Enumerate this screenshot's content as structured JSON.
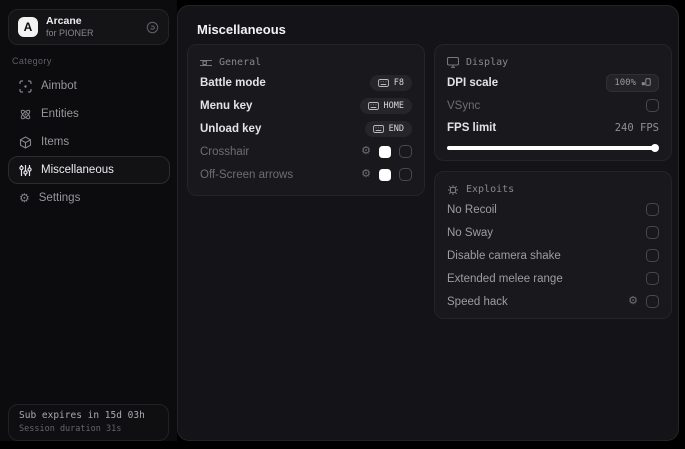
{
  "app": {
    "logo_letter": "A",
    "name": "Arcane",
    "subtitle": "for PIONER"
  },
  "sidebar": {
    "category_label": "Category",
    "items": [
      {
        "label": "Aimbot",
        "icon": "crosshair-scan-icon",
        "active": false
      },
      {
        "label": "Entities",
        "icon": "atom-icon",
        "active": false
      },
      {
        "label": "Items",
        "icon": "package-icon",
        "active": false
      },
      {
        "label": "Miscellaneous",
        "icon": "sliders-icon",
        "active": true
      },
      {
        "label": "Settings",
        "icon": "gear-icon",
        "active": false
      }
    ],
    "footer": {
      "sub_expiry": "Sub expires in 15d 03h",
      "session": "Session duration 31s"
    }
  },
  "main": {
    "title": "Miscellaneous",
    "general": {
      "header": "General",
      "rows": [
        {
          "label": "Battle mode",
          "keybind": "F8"
        },
        {
          "label": "Menu key",
          "keybind": "HOME"
        },
        {
          "label": "Unload key",
          "keybind": "END"
        },
        {
          "label": "Crosshair",
          "color": "#ffffff",
          "checked": false
        },
        {
          "label": "Off-Screen arrows",
          "color": "#ffffff",
          "checked": false
        }
      ]
    },
    "display": {
      "header": "Display",
      "rows": [
        {
          "label": "DPI scale",
          "value": "100%"
        },
        {
          "label": "VSync",
          "checked": false
        },
        {
          "label": "FPS limit",
          "value": "240 FPS",
          "slider_percent": 98
        }
      ]
    },
    "exploits": {
      "header": "Exploits",
      "rows": [
        {
          "label": "No Recoil",
          "checked": false
        },
        {
          "label": "No Sway",
          "checked": false
        },
        {
          "label": "Disable camera shake",
          "checked": false
        },
        {
          "label": "Extended melee range",
          "checked": false
        },
        {
          "label": "Speed hack",
          "checked": false,
          "has_settings": true
        }
      ]
    }
  },
  "colors": {
    "swatch": "#ffffff",
    "slider_fill": "#ffffff",
    "panel_background": "#19191d",
    "window_background": "#141418",
    "sidebar_background": "#0c0c0e"
  }
}
